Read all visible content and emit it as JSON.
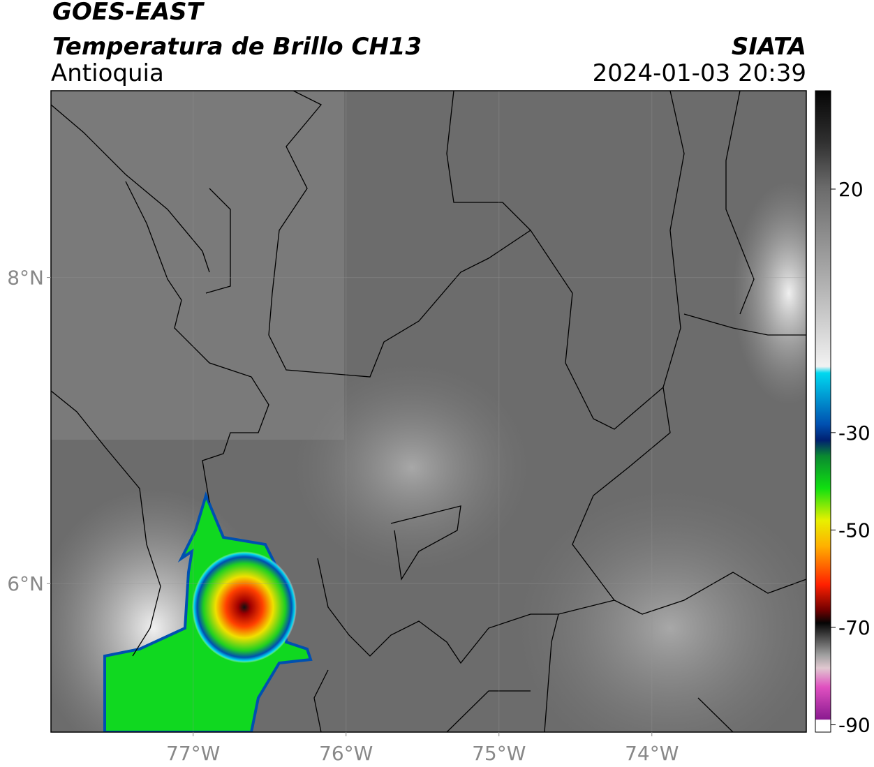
{
  "header": {
    "satellite": "GOES-EAST",
    "product": "Temperatura de Brillo CH13",
    "region": "Antioquia",
    "source": "SIATA",
    "datetime": "2024-01-03 20:39"
  },
  "map": {
    "xlim": [
      -77.93,
      -72.99
    ],
    "ylim": [
      5.03,
      9.22
    ],
    "xticks": [
      {
        "value": -77,
        "label": "77°W"
      },
      {
        "value": -76,
        "label": "76°W"
      },
      {
        "value": -75,
        "label": "75°W"
      },
      {
        "value": -74,
        "label": "74°W"
      }
    ],
    "yticks": [
      {
        "value": 8,
        "label": "8°N"
      },
      {
        "value": 6,
        "label": "6°N"
      }
    ],
    "grid": true
  },
  "colorbar": {
    "clim": [
      -91.5,
      40.2
    ],
    "ticks": [
      20,
      -30,
      -50,
      -70,
      -90
    ]
  }
}
